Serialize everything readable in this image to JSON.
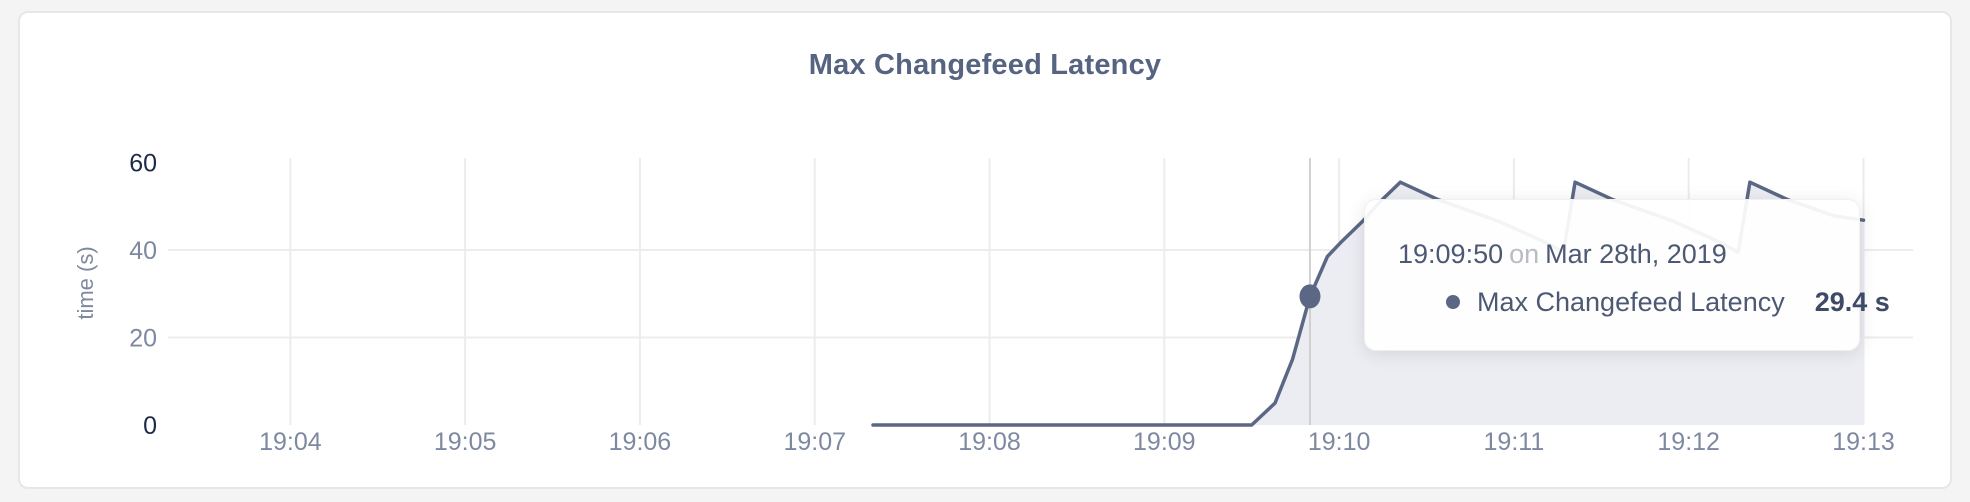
{
  "chart_data": {
    "type": "area",
    "title": "Max Changefeed Latency",
    "ylabel": "time (s)",
    "unit": "s",
    "grid": true,
    "legend_position": "none",
    "x_domain_seconds_after_1900": [
      198,
      797
    ],
    "y_domain": [
      0,
      61
    ],
    "x_ticks": [
      {
        "t": 240,
        "label": "19:04"
      },
      {
        "t": 300,
        "label": "19:05"
      },
      {
        "t": 360,
        "label": "19:06"
      },
      {
        "t": 420,
        "label": "19:07"
      },
      {
        "t": 480,
        "label": "19:08"
      },
      {
        "t": 540,
        "label": "19:09"
      },
      {
        "t": 600,
        "label": "19:10"
      },
      {
        "t": 660,
        "label": "19:11"
      },
      {
        "t": 720,
        "label": "19:12"
      },
      {
        "t": 780,
        "label": "19:13"
      }
    ],
    "y_ticks": [
      {
        "v": 0,
        "label": "0",
        "strong": true
      },
      {
        "v": 20,
        "label": "20",
        "strong": false
      },
      {
        "v": 40,
        "label": "40",
        "strong": false
      },
      {
        "v": 60,
        "label": "60",
        "strong": true
      }
    ],
    "grid_y_values": [
      20,
      40
    ],
    "series": [
      {
        "name": "Max Changefeed Latency",
        "points_t_v": [
          [
            440,
            0
          ],
          [
            570,
            0
          ],
          [
            578,
            5
          ],
          [
            584,
            15
          ],
          [
            590,
            29.4
          ],
          [
            596,
            38.5
          ],
          [
            601,
            42
          ],
          [
            608,
            46.5
          ],
          [
            614,
            51
          ],
          [
            621,
            55.5
          ],
          [
            634,
            51.5
          ],
          [
            655,
            46.5
          ],
          [
            670,
            42
          ],
          [
            677,
            39.5
          ],
          [
            681,
            55.5
          ],
          [
            694,
            51.5
          ],
          [
            715,
            46.5
          ],
          [
            730,
            42
          ],
          [
            737,
            39.5
          ],
          [
            741,
            55.5
          ],
          [
            754,
            51.5
          ],
          [
            770,
            47.8
          ],
          [
            780,
            46.8
          ]
        ]
      }
    ],
    "hover_point": {
      "t": 590,
      "value": 29.4,
      "time_label": "19:09:50"
    }
  },
  "tooltip": {
    "time": "19:09:50",
    "connector": "on",
    "date": "Mar 28th, 2019",
    "series": "Max Changefeed Latency",
    "value": "29.4 s"
  },
  "colors": {
    "line": "#5b6784",
    "fill": "#ebedf3",
    "grid": "#ececec",
    "crosshair": "#d0d0d0",
    "axis_strong": "#1c2a4a",
    "axis_muted": "#7e89a1",
    "title": "#566381",
    "tooltip_text": "#4d5873",
    "tooltip_muted": "#b9bcc4",
    "page_bg": "#f4f4f5",
    "card_bg": "#ffffff",
    "card_border": "#e7e7e9"
  }
}
